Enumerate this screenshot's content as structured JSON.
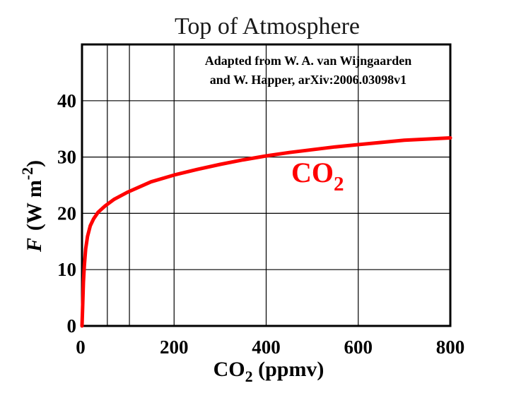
{
  "chart_data": {
    "type": "line",
    "title": "Top of Atmosphere",
    "annotation": {
      "line1": "Adapted from W. A. van Wijngaarden",
      "line2": "and W. Happer, arXiv:2006.03098v1"
    },
    "xlabel": {
      "main": "CO",
      "sub": "2",
      "rest": " (ppmv)"
    },
    "ylabel": {
      "var": "F",
      "unit": "(W m",
      "sup": "-2",
      "close": ")"
    },
    "xlim": [
      0,
      800
    ],
    "ylim": [
      0,
      50
    ],
    "xticks": [
      0,
      200,
      400,
      600,
      800
    ],
    "xtick_labels": [
      "0",
      "200",
      "400",
      "600",
      "800"
    ],
    "yticks": [
      0,
      10,
      20,
      30,
      40
    ],
    "ytick_labels": [
      "0",
      "10",
      "20",
      "30",
      "40"
    ],
    "vertical_gridlines": [
      0,
      55,
      103,
      200,
      400,
      600,
      800
    ],
    "horizontal_gridlines": [
      0,
      10,
      20,
      30,
      40
    ],
    "grid": true,
    "series": [
      {
        "name": "CO2",
        "label_main": "CO",
        "label_sub": "2",
        "color": "#ff0000",
        "x": [
          0,
          1,
          2,
          3,
          5,
          8,
          12,
          18,
          25,
          35,
          50,
          70,
          100,
          150,
          200,
          250,
          300,
          350,
          400,
          450,
          500,
          550,
          600,
          650,
          700,
          750,
          800
        ],
        "y": [
          0,
          2.6,
          5.0,
          7.8,
          10.7,
          13.7,
          15.9,
          17.8,
          19.0,
          20.2,
          21.3,
          22.5,
          23.8,
          25.6,
          26.8,
          27.8,
          28.7,
          29.5,
          30.2,
          30.8,
          31.3,
          31.8,
          32.2,
          32.6,
          33.0,
          33.2,
          33.4
        ]
      }
    ]
  }
}
